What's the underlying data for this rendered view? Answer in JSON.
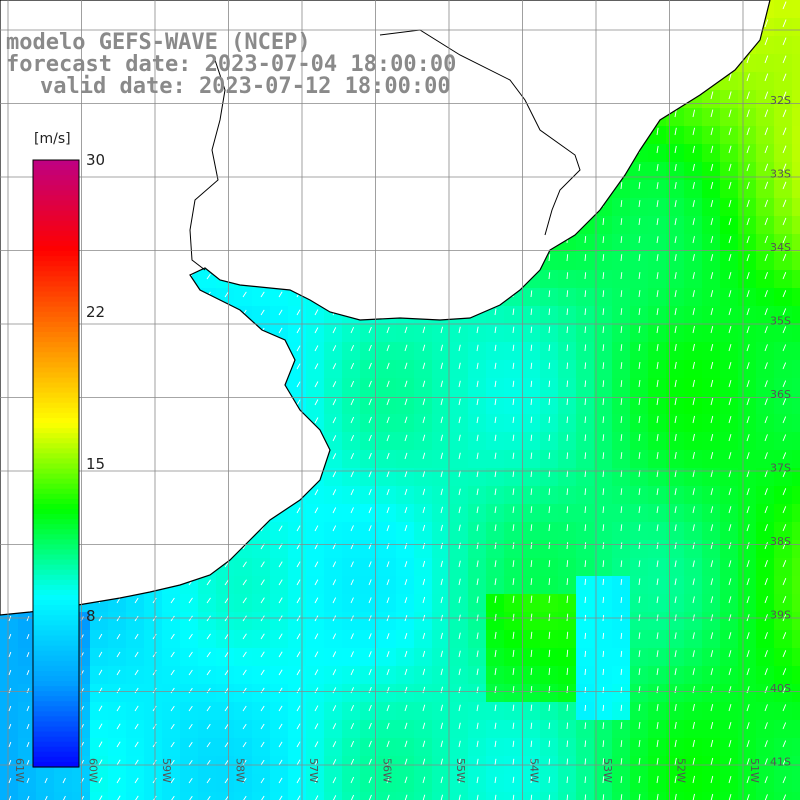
{
  "title": {
    "line1": "modelo GEFS-WAVE (NCEP)",
    "line2": "forecast date: 2023-07-04 18:00:00",
    "line3": "valid date: 2023-07-12 18:00:00"
  },
  "colorbar": {
    "unit_label": "[m/s]",
    "tick_labels": [
      "30",
      "22",
      "15",
      "8"
    ],
    "range": [
      0,
      30
    ],
    "colors": [
      "#0000ff",
      "#00a0ff",
      "#00ffff",
      "#00ff00",
      "#ffff00",
      "#ff8000",
      "#ff0000",
      "#c00080"
    ]
  },
  "grid": {
    "lat_labels": [
      "32S",
      "33S",
      "34S",
      "35S",
      "36S",
      "37S",
      "38S",
      "39S",
      "40S",
      "41S"
    ],
    "lon_labels": [
      "61W",
      "60W",
      "59W",
      "58W",
      "57W",
      "56W",
      "55W",
      "54W",
      "53W",
      "52W",
      "51W"
    ],
    "grid_color": "#888888"
  },
  "colors": {
    "land": "#ffffff",
    "coastline": "#000000",
    "arrow": "#ffffff",
    "title_text": "#8a8a8a"
  }
}
